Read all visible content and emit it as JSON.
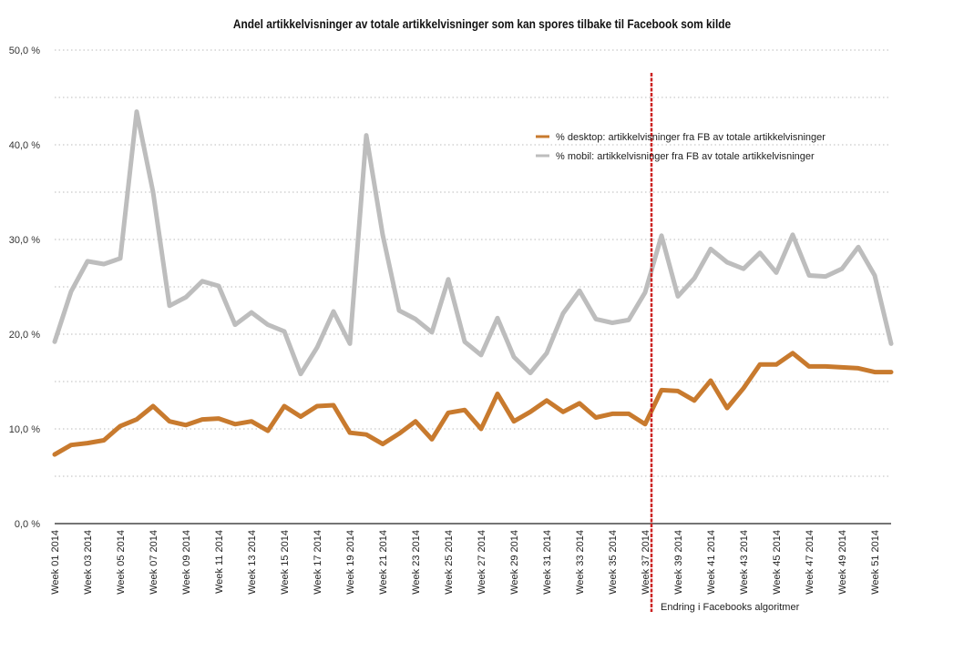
{
  "chart_data": {
    "type": "line",
    "title": "Andel artikkelvisninger av totale artikkelvisninger som kan spores tilbake til Facebook som kilde",
    "xlabel": "",
    "ylabel": "",
    "ylim": [
      0,
      50
    ],
    "y_ticks": [
      "0,0 %",
      "10,0 %",
      "20,0 %",
      "30,0 %",
      "40,0 %",
      "50,0 %"
    ],
    "grid": "horizontal dotted",
    "legend_position": "upper-right",
    "categories": [
      "Week 01 2014",
      "Week 02 2014",
      "Week 03 2014",
      "Week 04 2014",
      "Week 05 2014",
      "Week 06 2014",
      "Week 07 2014",
      "Week 08 2014",
      "Week 09 2014",
      "Week 10 2014",
      "Week 11 2014",
      "Week 12 2014",
      "Week 13 2014",
      "Week 14 2014",
      "Week 15 2014",
      "Week 16 2014",
      "Week 17 2014",
      "Week 18 2014",
      "Week 19 2014",
      "Week 20 2014",
      "Week 21 2014",
      "Week 22 2014",
      "Week 23 2014",
      "Week 24 2014",
      "Week 25 2014",
      "Week 26 2014",
      "Week 27 2014",
      "Week 28 2014",
      "Week 29 2014",
      "Week 30 2014",
      "Week 31 2014",
      "Week 32 2014",
      "Week 33 2014",
      "Week 34 2014",
      "Week 35 2014",
      "Week 36 2014",
      "Week 37 2014",
      "Week 38 2014",
      "Week 39 2014",
      "Week 40 2014",
      "Week 41 2014",
      "Week 42 2014",
      "Week 43 2014",
      "Week 44 2014",
      "Week 45 2014",
      "Week 46 2014",
      "Week 47 2014",
      "Week 48 2014",
      "Week 49 2014",
      "Week 50 2014",
      "Week 51 2014",
      "Week 52 2014"
    ],
    "tick_labels_shown": [
      "Week 01 2014",
      "Week 03 2014",
      "Week 05 2014",
      "Week 07 2014",
      "Week 09 2014",
      "Week 11 2014",
      "Week 13 2014",
      "Week 15 2014",
      "Week 17 2014",
      "Week 19 2014",
      "Week 21 2014",
      "Week 23 2014",
      "Week 25 2014",
      "Week 27 2014",
      "Week 29 2014",
      "Week 31 2014",
      "Week 33 2014",
      "Week 35 2014",
      "Week 37 2014",
      "Week 39 2014",
      "Week 41 2014",
      "Week 43 2014",
      "Week 45 2014",
      "Week 47 2014",
      "Week 49 2014",
      "Week 51 2014"
    ],
    "series": [
      {
        "name": "%  desktop: artikkelvisninger fra FB av totale artikkelvisninger",
        "color": "#c87a2e",
        "values": [
          7.3,
          8.3,
          8.5,
          8.8,
          10.3,
          11.0,
          12.4,
          10.8,
          10.4,
          11.0,
          11.1,
          10.5,
          10.8,
          9.8,
          12.4,
          11.3,
          12.4,
          12.5,
          9.6,
          9.4,
          8.4,
          9.5,
          10.8,
          8.9,
          11.7,
          12.0,
          10.0,
          13.7,
          10.8,
          11.8,
          13.0,
          11.8,
          12.7,
          11.2,
          11.6,
          11.6,
          10.5,
          14.1,
          14.0,
          13.0,
          15.1,
          12.2,
          14.3,
          16.8,
          16.8,
          18.0,
          16.6,
          16.6,
          16.5,
          16.4,
          16.0,
          16.0
        ]
      },
      {
        "name": "%  mobil: artikkelvisninger fra FB av totale artikkelvisninger",
        "color": "#bdbdbd",
        "values": [
          19.2,
          24.5,
          27.7,
          27.4,
          28.0,
          43.5,
          35.0,
          23.0,
          23.9,
          25.6,
          25.1,
          21.0,
          22.3,
          21.0,
          20.3,
          15.8,
          18.6,
          22.4,
          19.0,
          41.0,
          30.5,
          22.5,
          21.6,
          20.2,
          25.8,
          19.2,
          17.8,
          21.7,
          17.6,
          15.9,
          18.0,
          22.2,
          24.6,
          21.6,
          21.2,
          21.5,
          24.4,
          30.4,
          24.0,
          25.9,
          29.0,
          27.6,
          26.9,
          28.6,
          26.5,
          30.5,
          26.2,
          26.1,
          26.9,
          29.2,
          26.2,
          19.0
        ]
      }
    ],
    "annotations": [
      {
        "label": "Endring i Facebooks algoritmer",
        "at_category": "Week 38 2014",
        "color": "#cc2222",
        "style": "dashed vertical line"
      }
    ]
  }
}
